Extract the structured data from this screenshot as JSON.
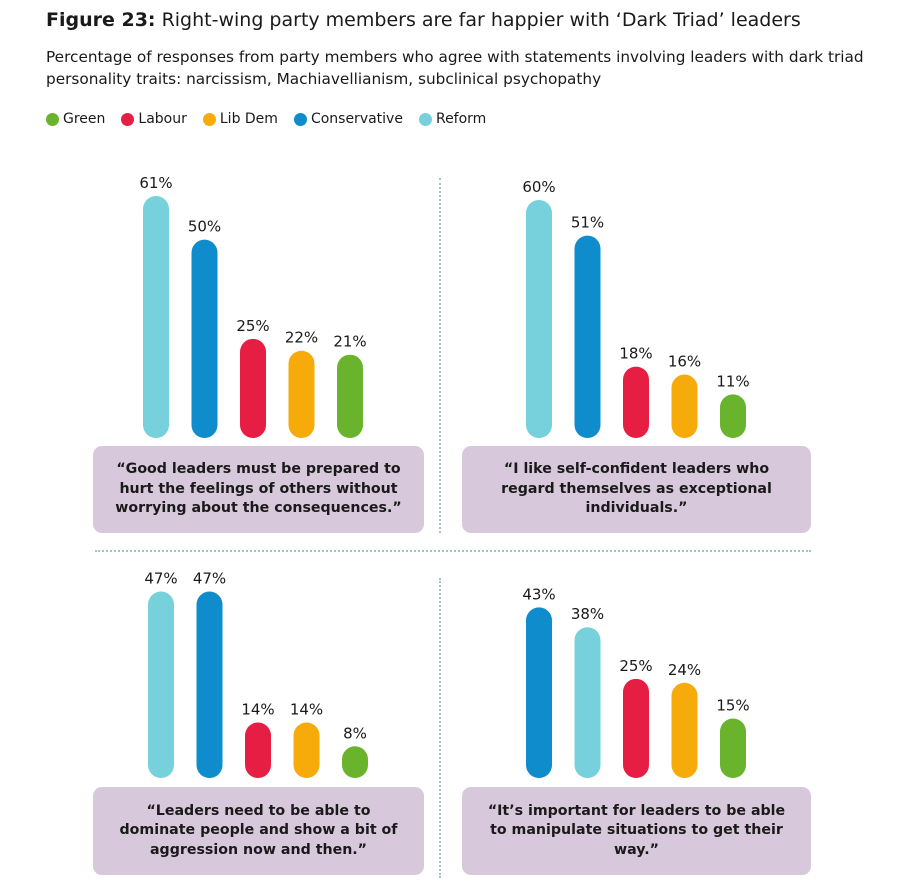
{
  "title": {
    "bold": "Figure 23:",
    "rest": "Right-wing party members are far happier with ‘Dark Triad’ leaders"
  },
  "subtitle": "Percentage of responses from party members who agree with statements involving leaders with dark triad personality traits: narcissism, Machiavellianism, subclinical psychopathy",
  "colors": {
    "Green": "#6ab42d",
    "Labour": "#e61e43",
    "Lib Dem": "#f6ab0a",
    "Conservative": "#0e8ccc",
    "Reform": "#76d1dc"
  },
  "legend": [
    "Green",
    "Labour",
    "Lib Dem",
    "Conservative",
    "Reform"
  ],
  "chart_data": [
    {
      "type": "bar",
      "title": "",
      "ylim": [
        0,
        100
      ],
      "unit": "%",
      "categories": [
        "Reform",
        "Conservative",
        "Labour",
        "Lib Dem",
        "Green"
      ],
      "values": [
        61,
        50,
        25,
        22,
        21
      ],
      "labels": [
        "61%",
        "50%",
        "25%",
        "22%",
        "21%"
      ],
      "quote": "“Good leaders must be prepared to hurt the feelings of others without worrying about the consequences.”"
    },
    {
      "type": "bar",
      "title": "",
      "ylim": [
        0,
        100
      ],
      "unit": "%",
      "categories": [
        "Reform",
        "Conservative",
        "Labour",
        "Lib Dem",
        "Green"
      ],
      "values": [
        60,
        51,
        18,
        16,
        11
      ],
      "labels": [
        "60%",
        "51%",
        "18%",
        "16%",
        "11%"
      ],
      "quote": "“I like self-confident leaders who regard themselves as exceptional individuals.”"
    },
    {
      "type": "bar",
      "title": "",
      "ylim": [
        0,
        100
      ],
      "unit": "%",
      "categories": [
        "Reform",
        "Conservative",
        "Labour",
        "Lib Dem",
        "Green"
      ],
      "values": [
        47,
        47,
        14,
        14,
        8
      ],
      "labels": [
        "47%",
        "47%",
        "14%",
        "14%",
        "8%"
      ],
      "quote": "“Leaders need to be able to dominate people and show a bit of aggression now and then.”"
    },
    {
      "type": "bar",
      "title": "",
      "ylim": [
        0,
        100
      ],
      "unit": "%",
      "categories": [
        "Conservative",
        "Reform",
        "Labour",
        "Lib Dem",
        "Green"
      ],
      "values": [
        43,
        38,
        25,
        24,
        15
      ],
      "labels": [
        "43%",
        "38%",
        "25%",
        "24%",
        "15%"
      ],
      "quote": "“It’s important for leaders to be able to manipulate situations to get their way.”"
    }
  ]
}
